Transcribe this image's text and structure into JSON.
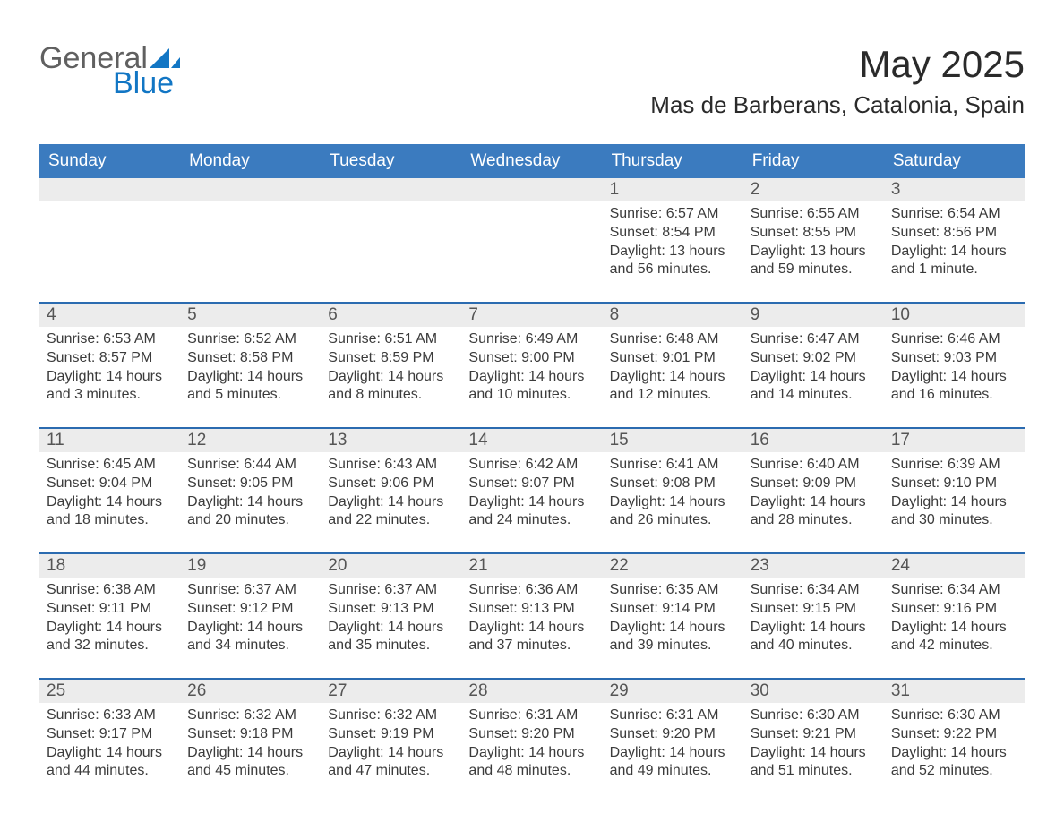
{
  "logo": {
    "word1": "General",
    "word2": "Blue"
  },
  "header": {
    "month_title": "May 2025",
    "location": "Mas de Barberans, Catalonia, Spain"
  },
  "colors": {
    "header_bg": "#3b7bbf",
    "week_separator": "#2b6bb0",
    "daynum_bg": "#ececec",
    "text": "#3b3b3b",
    "logo_blue": "#1276c4",
    "page_bg": "#ffffff"
  },
  "weekdays": [
    "Sunday",
    "Monday",
    "Tuesday",
    "Wednesday",
    "Thursday",
    "Friday",
    "Saturday"
  ],
  "weeks": [
    [
      null,
      null,
      null,
      null,
      {
        "day": "1",
        "sunrise": "Sunrise: 6:57 AM",
        "sunset": "Sunset: 8:54 PM",
        "daylight1": "Daylight: 13 hours",
        "daylight2": "and 56 minutes."
      },
      {
        "day": "2",
        "sunrise": "Sunrise: 6:55 AM",
        "sunset": "Sunset: 8:55 PM",
        "daylight1": "Daylight: 13 hours",
        "daylight2": "and 59 minutes."
      },
      {
        "day": "3",
        "sunrise": "Sunrise: 6:54 AM",
        "sunset": "Sunset: 8:56 PM",
        "daylight1": "Daylight: 14 hours",
        "daylight2": "and 1 minute."
      }
    ],
    [
      {
        "day": "4",
        "sunrise": "Sunrise: 6:53 AM",
        "sunset": "Sunset: 8:57 PM",
        "daylight1": "Daylight: 14 hours",
        "daylight2": "and 3 minutes."
      },
      {
        "day": "5",
        "sunrise": "Sunrise: 6:52 AM",
        "sunset": "Sunset: 8:58 PM",
        "daylight1": "Daylight: 14 hours",
        "daylight2": "and 5 minutes."
      },
      {
        "day": "6",
        "sunrise": "Sunrise: 6:51 AM",
        "sunset": "Sunset: 8:59 PM",
        "daylight1": "Daylight: 14 hours",
        "daylight2": "and 8 minutes."
      },
      {
        "day": "7",
        "sunrise": "Sunrise: 6:49 AM",
        "sunset": "Sunset: 9:00 PM",
        "daylight1": "Daylight: 14 hours",
        "daylight2": "and 10 minutes."
      },
      {
        "day": "8",
        "sunrise": "Sunrise: 6:48 AM",
        "sunset": "Sunset: 9:01 PM",
        "daylight1": "Daylight: 14 hours",
        "daylight2": "and 12 minutes."
      },
      {
        "day": "9",
        "sunrise": "Sunrise: 6:47 AM",
        "sunset": "Sunset: 9:02 PM",
        "daylight1": "Daylight: 14 hours",
        "daylight2": "and 14 minutes."
      },
      {
        "day": "10",
        "sunrise": "Sunrise: 6:46 AM",
        "sunset": "Sunset: 9:03 PM",
        "daylight1": "Daylight: 14 hours",
        "daylight2": "and 16 minutes."
      }
    ],
    [
      {
        "day": "11",
        "sunrise": "Sunrise: 6:45 AM",
        "sunset": "Sunset: 9:04 PM",
        "daylight1": "Daylight: 14 hours",
        "daylight2": "and 18 minutes."
      },
      {
        "day": "12",
        "sunrise": "Sunrise: 6:44 AM",
        "sunset": "Sunset: 9:05 PM",
        "daylight1": "Daylight: 14 hours",
        "daylight2": "and 20 minutes."
      },
      {
        "day": "13",
        "sunrise": "Sunrise: 6:43 AM",
        "sunset": "Sunset: 9:06 PM",
        "daylight1": "Daylight: 14 hours",
        "daylight2": "and 22 minutes."
      },
      {
        "day": "14",
        "sunrise": "Sunrise: 6:42 AM",
        "sunset": "Sunset: 9:07 PM",
        "daylight1": "Daylight: 14 hours",
        "daylight2": "and 24 minutes."
      },
      {
        "day": "15",
        "sunrise": "Sunrise: 6:41 AM",
        "sunset": "Sunset: 9:08 PM",
        "daylight1": "Daylight: 14 hours",
        "daylight2": "and 26 minutes."
      },
      {
        "day": "16",
        "sunrise": "Sunrise: 6:40 AM",
        "sunset": "Sunset: 9:09 PM",
        "daylight1": "Daylight: 14 hours",
        "daylight2": "and 28 minutes."
      },
      {
        "day": "17",
        "sunrise": "Sunrise: 6:39 AM",
        "sunset": "Sunset: 9:10 PM",
        "daylight1": "Daylight: 14 hours",
        "daylight2": "and 30 minutes."
      }
    ],
    [
      {
        "day": "18",
        "sunrise": "Sunrise: 6:38 AM",
        "sunset": "Sunset: 9:11 PM",
        "daylight1": "Daylight: 14 hours",
        "daylight2": "and 32 minutes."
      },
      {
        "day": "19",
        "sunrise": "Sunrise: 6:37 AM",
        "sunset": "Sunset: 9:12 PM",
        "daylight1": "Daylight: 14 hours",
        "daylight2": "and 34 minutes."
      },
      {
        "day": "20",
        "sunrise": "Sunrise: 6:37 AM",
        "sunset": "Sunset: 9:13 PM",
        "daylight1": "Daylight: 14 hours",
        "daylight2": "and 35 minutes."
      },
      {
        "day": "21",
        "sunrise": "Sunrise: 6:36 AM",
        "sunset": "Sunset: 9:13 PM",
        "daylight1": "Daylight: 14 hours",
        "daylight2": "and 37 minutes."
      },
      {
        "day": "22",
        "sunrise": "Sunrise: 6:35 AM",
        "sunset": "Sunset: 9:14 PM",
        "daylight1": "Daylight: 14 hours",
        "daylight2": "and 39 minutes."
      },
      {
        "day": "23",
        "sunrise": "Sunrise: 6:34 AM",
        "sunset": "Sunset: 9:15 PM",
        "daylight1": "Daylight: 14 hours",
        "daylight2": "and 40 minutes."
      },
      {
        "day": "24",
        "sunrise": "Sunrise: 6:34 AM",
        "sunset": "Sunset: 9:16 PM",
        "daylight1": "Daylight: 14 hours",
        "daylight2": "and 42 minutes."
      }
    ],
    [
      {
        "day": "25",
        "sunrise": "Sunrise: 6:33 AM",
        "sunset": "Sunset: 9:17 PM",
        "daylight1": "Daylight: 14 hours",
        "daylight2": "and 44 minutes."
      },
      {
        "day": "26",
        "sunrise": "Sunrise: 6:32 AM",
        "sunset": "Sunset: 9:18 PM",
        "daylight1": "Daylight: 14 hours",
        "daylight2": "and 45 minutes."
      },
      {
        "day": "27",
        "sunrise": "Sunrise: 6:32 AM",
        "sunset": "Sunset: 9:19 PM",
        "daylight1": "Daylight: 14 hours",
        "daylight2": "and 47 minutes."
      },
      {
        "day": "28",
        "sunrise": "Sunrise: 6:31 AM",
        "sunset": "Sunset: 9:20 PM",
        "daylight1": "Daylight: 14 hours",
        "daylight2": "and 48 minutes."
      },
      {
        "day": "29",
        "sunrise": "Sunrise: 6:31 AM",
        "sunset": "Sunset: 9:20 PM",
        "daylight1": "Daylight: 14 hours",
        "daylight2": "and 49 minutes."
      },
      {
        "day": "30",
        "sunrise": "Sunrise: 6:30 AM",
        "sunset": "Sunset: 9:21 PM",
        "daylight1": "Daylight: 14 hours",
        "daylight2": "and 51 minutes."
      },
      {
        "day": "31",
        "sunrise": "Sunrise: 6:30 AM",
        "sunset": "Sunset: 9:22 PM",
        "daylight1": "Daylight: 14 hours",
        "daylight2": "and 52 minutes."
      }
    ]
  ]
}
